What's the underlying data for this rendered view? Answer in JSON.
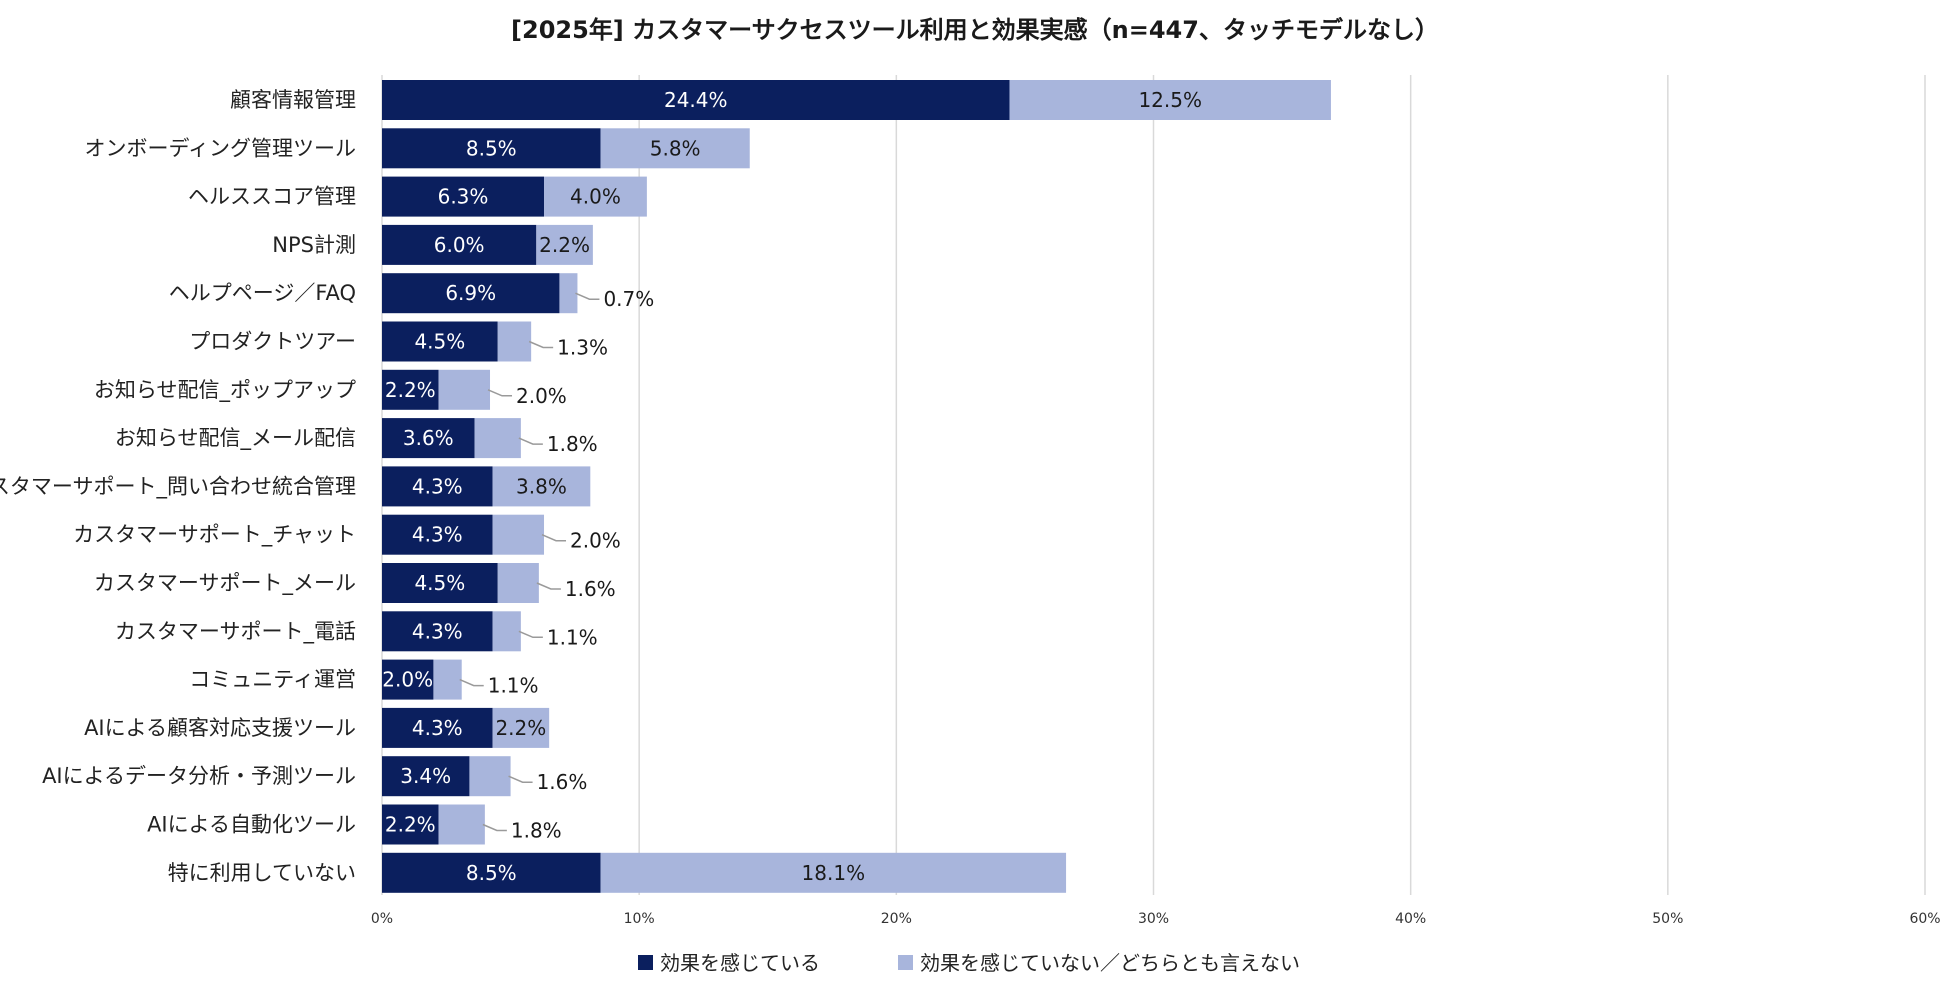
{
  "chart_data": {
    "type": "bar",
    "orientation": "horizontal",
    "stacked": true,
    "title": "[2025年] カスタマーサクセスツール利用と効果実感（n=447、タッチモデルなし）",
    "categories": [
      "顧客情報管理",
      "オンボーディング管理ツール",
      "ヘルススコア管理",
      "NPS計測",
      "ヘルプページ／FAQ",
      "プロダクトツアー",
      "お知らせ配信_ポップアップ",
      "お知らせ配信_メール配信",
      "カスタマーサポート_問い合わせ統合管理",
      "カスタマーサポート_チャット",
      "カスタマーサポート_メール",
      "カスタマーサポート_電話",
      "コミュニティ運営",
      "AIによる顧客対応支援ツール",
      "AIによるデータ分析・予測ツール",
      "AIによる自動化ツール",
      "特に利用していない"
    ],
    "series": [
      {
        "name": "効果を感じている",
        "color": "#0b1f5e",
        "values": [
          24.4,
          8.5,
          6.3,
          6.0,
          6.9,
          4.5,
          2.2,
          3.6,
          4.3,
          4.3,
          4.5,
          4.3,
          2.0,
          4.3,
          3.4,
          2.2,
          8.5
        ],
        "labels": [
          "24.4%",
          "8.5%",
          "6.3%",
          "6.0%",
          "6.9%",
          "4.5%",
          "2.2%",
          "3.6%",
          "4.3%",
          "4.3%",
          "4.5%",
          "4.3%",
          "2.0%",
          "4.3%",
          "3.4%",
          "2.2%",
          "8.5%"
        ]
      },
      {
        "name": "効果を感じていない／どちらとも言えない",
        "color": "#a8b5dc",
        "values": [
          12.5,
          5.8,
          4.0,
          2.2,
          0.7,
          1.3,
          2.0,
          1.8,
          3.8,
          2.0,
          1.6,
          1.1,
          1.1,
          2.2,
          1.6,
          1.8,
          18.1
        ],
        "labels": [
          "12.5%",
          "5.8%",
          "4.0%",
          "2.2%",
          "0.7%",
          "1.3%",
          "2.0%",
          "1.8%",
          "3.8%",
          "2.0%",
          "1.6%",
          "1.1%",
          "1.1%",
          "2.2%",
          "1.6%",
          "1.8%",
          "18.1%"
        ]
      }
    ],
    "xlim": [
      0,
      60
    ],
    "xticks": [
      0,
      10,
      20,
      30,
      40,
      50,
      60
    ],
    "xtick_labels": [
      "0%",
      "10%",
      "20%",
      "30%",
      "40%",
      "50%",
      "60%"
    ],
    "grid": true,
    "legend_position": "bottom",
    "gridline_color": "#d9d9d9"
  }
}
